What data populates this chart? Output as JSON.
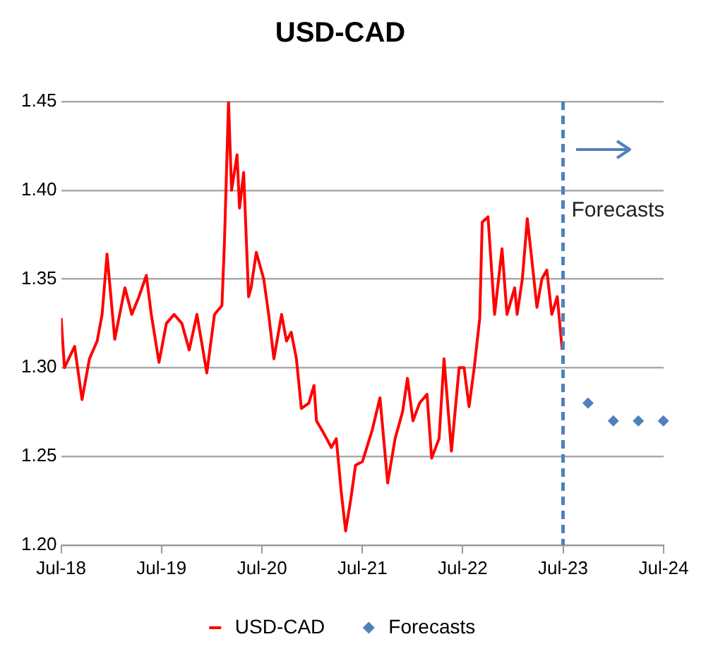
{
  "chart_data": {
    "type": "line",
    "title": "USD-CAD",
    "xlim": [
      "2018-07-01",
      "2024-07-01"
    ],
    "xticks": [
      {
        "value": "2018-07-01",
        "label": "Jul-18"
      },
      {
        "value": "2019-07-01",
        "label": "Jul-19"
      },
      {
        "value": "2020-07-01",
        "label": "Jul-20"
      },
      {
        "value": "2021-07-01",
        "label": "Jul-21"
      },
      {
        "value": "2022-07-01",
        "label": "Jul-22"
      },
      {
        "value": "2023-07-01",
        "label": "Jul-23"
      },
      {
        "value": "2024-07-01",
        "label": "Jul-24"
      }
    ],
    "ylim": [
      1.2,
      1.45
    ],
    "yticks": [
      {
        "value": 1.2,
        "label": "1.20"
      },
      {
        "value": 1.25,
        "label": "1.25"
      },
      {
        "value": 1.3,
        "label": "1.30"
      },
      {
        "value": 1.35,
        "label": "1.35"
      },
      {
        "value": 1.4,
        "label": "1.40"
      },
      {
        "value": 1.45,
        "label": "1.45"
      }
    ],
    "grid": "y",
    "legend": "bottom",
    "ref_lines": [
      {
        "axis": "x",
        "value": "2023-07-01",
        "label": "Forecasts",
        "color": "#4f81bd",
        "line_style": "dashed"
      }
    ],
    "series": [
      {
        "name": "USD-CAD",
        "color": "#ff0000",
        "marker": "none",
        "x": [
          "2018-07-01",
          "2018-07-13",
          "2018-08-19",
          "2018-09-15",
          "2018-10-12",
          "2018-11-09",
          "2018-11-27",
          "2018-12-15",
          "2019-01-12",
          "2019-02-18",
          "2019-03-15",
          "2019-04-10",
          "2019-05-07",
          "2019-05-25",
          "2019-06-22",
          "2019-07-19",
          "2019-08-16",
          "2019-09-13",
          "2019-10-10",
          "2019-11-07",
          "2019-12-13",
          "2020-01-10",
          "2020-02-06",
          "2020-02-15",
          "2020-03-01",
          "2020-03-12",
          "2020-04-01",
          "2020-04-10",
          "2020-04-25",
          "2020-05-13",
          "2020-05-22",
          "2020-06-10",
          "2020-07-07",
          "2020-07-25",
          "2020-08-13",
          "2020-09-10",
          "2020-09-28",
          "2020-10-15",
          "2020-11-03",
          "2020-11-21",
          "2020-12-18",
          "2021-01-06",
          "2021-01-15",
          "2021-02-03",
          "2021-02-21",
          "2021-03-10",
          "2021-03-28",
          "2021-04-15",
          "2021-05-01",
          "2021-05-19",
          "2021-06-06",
          "2021-07-01",
          "2021-08-06",
          "2021-09-03",
          "2021-10-01",
          "2021-10-28",
          "2021-11-24",
          "2021-12-12",
          "2022-01-01",
          "2022-01-25",
          "2022-02-21",
          "2022-03-10",
          "2022-04-06",
          "2022-04-24",
          "2022-05-21",
          "2022-06-18",
          "2022-07-06",
          "2022-07-24",
          "2022-08-12",
          "2022-09-01",
          "2022-09-10",
          "2022-10-01",
          "2022-10-25",
          "2022-11-21",
          "2022-12-09",
          "2023-01-06",
          "2023-01-15",
          "2023-02-03",
          "2023-02-21",
          "2023-03-10",
          "2023-03-28",
          "2023-04-15",
          "2023-05-03",
          "2023-05-21",
          "2023-06-10",
          "2023-06-28"
        ],
        "values": [
          1.328,
          1.3,
          1.312,
          1.282,
          1.305,
          1.315,
          1.33,
          1.364,
          1.316,
          1.345,
          1.33,
          1.34,
          1.352,
          1.33,
          1.303,
          1.325,
          1.33,
          1.325,
          1.31,
          1.33,
          1.297,
          1.33,
          1.335,
          1.37,
          1.45,
          1.4,
          1.42,
          1.39,
          1.41,
          1.34,
          1.345,
          1.365,
          1.35,
          1.33,
          1.305,
          1.33,
          1.315,
          1.32,
          1.305,
          1.277,
          1.28,
          1.29,
          1.27,
          1.265,
          1.26,
          1.255,
          1.26,
          1.23,
          1.208,
          1.225,
          1.245,
          1.247,
          1.265,
          1.283,
          1.235,
          1.26,
          1.275,
          1.294,
          1.27,
          1.28,
          1.285,
          1.249,
          1.26,
          1.305,
          1.253,
          1.3,
          1.3,
          1.278,
          1.3,
          1.328,
          1.382,
          1.385,
          1.33,
          1.367,
          1.33,
          1.345,
          1.33,
          1.35,
          1.384,
          1.36,
          1.334,
          1.35,
          1.355,
          1.33,
          1.34,
          1.31
        ]
      },
      {
        "name": "Forecasts",
        "type": "scatter",
        "color": "#4f81bd",
        "marker": "diamond",
        "x": [
          "2023-09-30",
          "2023-12-31",
          "2024-03-31",
          "2024-06-30"
        ],
        "values": [
          1.28,
          1.27,
          1.27,
          1.27
        ]
      }
    ]
  }
}
